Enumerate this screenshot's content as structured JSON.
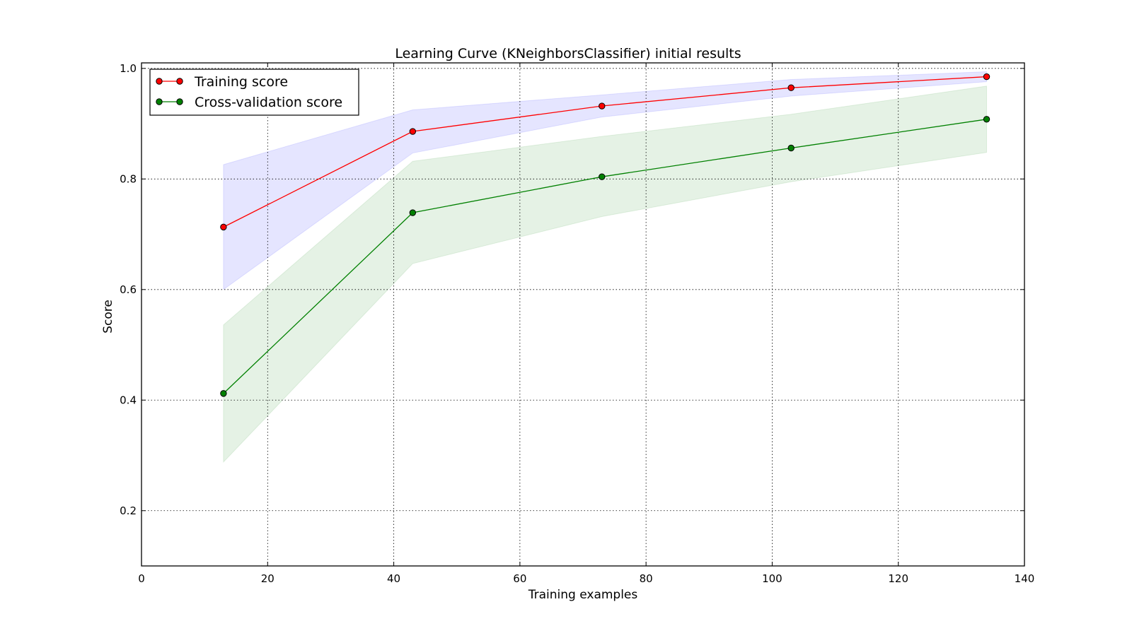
{
  "chart_data": {
    "type": "line",
    "title": "Learning Curve (KNeighborsClassifier) initial results",
    "xlabel": "Training examples",
    "ylabel": "Score",
    "xlim": [
      0,
      140
    ],
    "ylim": [
      0.1,
      1.01
    ],
    "xticks": [
      0,
      20,
      40,
      60,
      80,
      100,
      120,
      140
    ],
    "yticks": [
      0.2,
      0.4,
      0.6,
      0.8,
      1.0
    ],
    "xtick_labels": [
      "0",
      "20",
      "40",
      "60",
      "80",
      "100",
      "120",
      "140"
    ],
    "ytick_labels": [
      "0.2",
      "0.4",
      "0.6",
      "0.8",
      "1.0"
    ],
    "grid": true,
    "legend_position": "top-left",
    "x": [
      13,
      43,
      73,
      103,
      134
    ],
    "series": [
      {
        "name": "Training score",
        "color": "#ff0000",
        "band_color": "#0000ff",
        "values": [
          0.713,
          0.886,
          0.932,
          0.965,
          0.985
        ],
        "band_lower": [
          0.6,
          0.847,
          0.912,
          0.95,
          0.976
        ],
        "band_upper": [
          0.826,
          0.925,
          0.952,
          0.98,
          0.994
        ]
      },
      {
        "name": "Cross-validation score",
        "color": "#008000",
        "band_color": "#008000",
        "values": [
          0.412,
          0.739,
          0.804,
          0.856,
          0.908
        ],
        "band_lower": [
          0.288,
          0.647,
          0.732,
          0.795,
          0.848
        ],
        "band_upper": [
          0.536,
          0.832,
          0.877,
          0.917,
          0.968
        ]
      }
    ]
  }
}
